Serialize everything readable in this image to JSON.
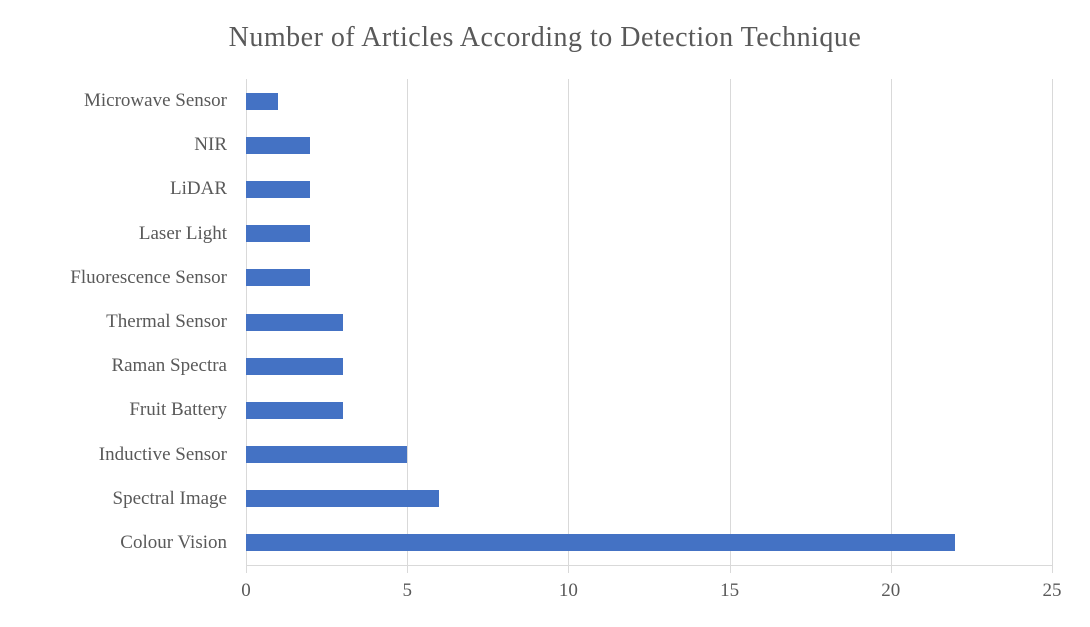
{
  "chart_data": {
    "type": "bar",
    "orientation": "horizontal",
    "title": "Number of Articles According to Detection Technique",
    "categories": [
      "Microwave Sensor",
      "NIR",
      "LiDAR",
      "Laser Light",
      "Fluorescence Sensor",
      "Thermal Sensor",
      "Raman Spectra",
      "Fruit Battery",
      "Inductive Sensor",
      "Spectral Image",
      "Colour Vision"
    ],
    "values": [
      1,
      2,
      2,
      2,
      2,
      3,
      3,
      3,
      5,
      6,
      22
    ],
    "xlabel": "",
    "ylabel": "",
    "xlim": [
      0,
      25
    ],
    "x_ticks": [
      0,
      5,
      10,
      15,
      20,
      25
    ],
    "grid": "vertical-gridlines",
    "legend": "none",
    "colors": {
      "bar": "#4472C4",
      "gridline": "#D9D9D9",
      "axis": "#D9D9D9",
      "text": "#595959"
    }
  }
}
